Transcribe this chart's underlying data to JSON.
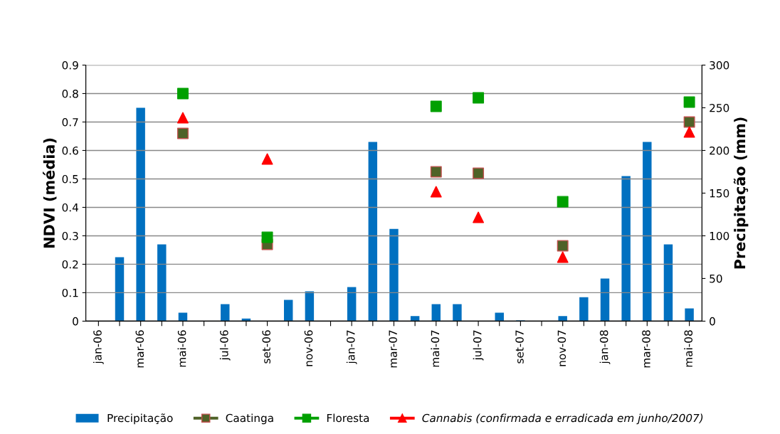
{
  "chart_data": {
    "type": "scatter",
    "categories": [
      "jan-06",
      null,
      "mar-06",
      null,
      "mai-06",
      null,
      "jul-06",
      null,
      "set-06",
      null,
      "nov-06",
      null,
      "jan-07",
      null,
      "mar-07",
      null,
      "mai-07",
      null,
      "jul-07",
      null,
      "set-07",
      null,
      "nov-07",
      null,
      "jan-08",
      null,
      "mar-08",
      null,
      "mai-08"
    ],
    "ylabel": "NDVI (média)",
    "y2label": "Precipitação (mm)",
    "ylim": [
      0,
      0.9
    ],
    "yticks": [
      {
        "value": 0,
        "label": "0"
      },
      0.1,
      0.2,
      0.3,
      0.4,
      0.5,
      0.6,
      0.7,
      0.8,
      0.9
    ],
    "y2lim": [
      0,
      300
    ],
    "y2ticks": [
      0,
      50,
      100,
      150,
      200,
      250,
      300
    ],
    "grid": "y",
    "legend": "bottom",
    "series": [
      {
        "name": "Precipitação",
        "type": "bar",
        "axis": "y2",
        "color": "#0070c0",
        "values": [
          0,
          75,
          250,
          90,
          10,
          0,
          20,
          3,
          0,
          25,
          35,
          0,
          40,
          210,
          108,
          6,
          20,
          20,
          0,
          10,
          1,
          0,
          6,
          28,
          50,
          170,
          210,
          90,
          15
        ]
      },
      {
        "name": "Caatinga",
        "marker": "square",
        "color": "#4f6228",
        "values": [
          null,
          null,
          null,
          null,
          0.66,
          null,
          null,
          null,
          0.27,
          null,
          null,
          null,
          null,
          null,
          null,
          null,
          0.525,
          null,
          0.52,
          null,
          null,
          null,
          0.265,
          null,
          null,
          null,
          null,
          null,
          0.7
        ]
      },
      {
        "name": "Floresta",
        "marker": "square",
        "color": "#00a000",
        "values": [
          null,
          null,
          null,
          null,
          0.8,
          null,
          null,
          null,
          0.295,
          null,
          null,
          null,
          null,
          null,
          null,
          null,
          0.755,
          null,
          0.785,
          null,
          null,
          null,
          0.42,
          null,
          null,
          null,
          null,
          null,
          0.77
        ]
      },
      {
        "name": "Cannabis (confirmada e erradicada em junho/2007)",
        "marker": "triangle",
        "color": "#ff0000",
        "values": [
          null,
          null,
          null,
          null,
          0.715,
          null,
          null,
          null,
          0.57,
          null,
          null,
          null,
          null,
          null,
          null,
          null,
          0.455,
          null,
          0.365,
          null,
          null,
          null,
          0.225,
          null,
          null,
          null,
          null,
          null,
          0.665
        ]
      }
    ]
  }
}
